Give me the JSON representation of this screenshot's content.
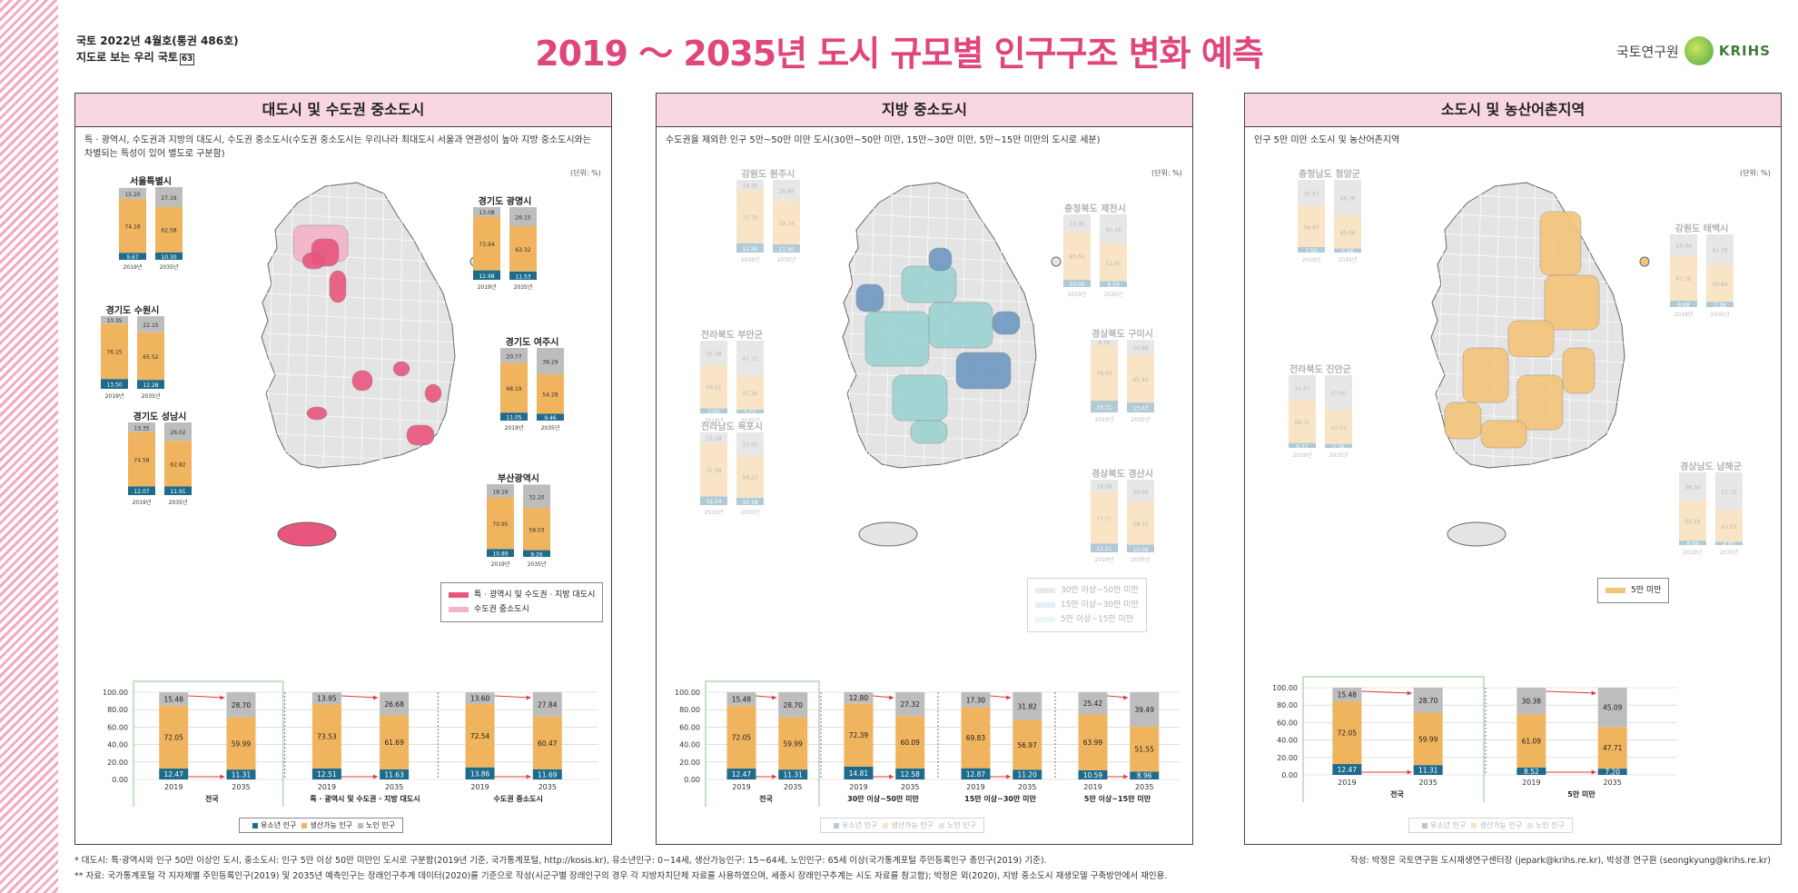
{
  "header": {
    "line1": "국토 2022년 4월호(통권 486호)",
    "line2": "지도로 보는 우리 국토",
    "line2_box": "63",
    "title": "2019 ～ 2035년 도시 규모별 인구구조 변화 예측",
    "logo_text": "국토연구원",
    "logo_en": "KRIHS"
  },
  "colors": {
    "youth": "#1f6b8c",
    "working": "#f0b45e",
    "elderly": "#bdbdbd",
    "metro": "#e8567e",
    "metroLight": "#f4b3c6",
    "local": "#9cd3d3",
    "localDark": "#6f98c2",
    "small": "#f4c47a",
    "accent": "#e0457b"
  },
  "panels": [
    {
      "title": "대도시 및 수도권 중소도시",
      "desc": "특 · 광역시, 수도권과 지방의 대도시, 수도권 중소도시(수도권 중소도시는 우리나라 최대도시 서울과 연관성이 높아 지방 중소도시와는 차별되는 특성이 있어 별도로 구분함)",
      "unit": "(단위: %)",
      "legend": [
        "특 · 광역시 및 수도권 · 지방 대도시",
        "수도권 중소도시"
      ],
      "callouts": [
        {
          "name": "서울특별시",
          "y19": [
            9.67,
            74.18,
            15.2
          ],
          "y35": [
            10.3,
            62.58,
            27.19
          ]
        },
        {
          "name": "경기도 광명시",
          "y19": [
            12.98,
            73.94,
            13.08
          ],
          "y35": [
            11.53,
            62.32,
            26.15
          ]
        },
        {
          "name": "경기도 수원시",
          "y19": [
            13.5,
            76.15,
            10.35
          ],
          "y35": [
            12.28,
            65.52,
            22.15
          ]
        },
        {
          "name": "경기도 여주시",
          "y19": [
            11.05,
            68.19,
            20.77
          ],
          "y35": [
            9.46,
            54.28,
            36.29
          ]
        },
        {
          "name": "경기도 성남시",
          "y19": [
            12.07,
            74.58,
            13.35
          ],
          "y35": [
            11.91,
            62.82,
            26.02
          ]
        },
        {
          "name": "부산광역시",
          "y19": [
            10.89,
            70.95,
            18.16
          ],
          "y35": [
            9.26,
            58.03,
            32.2
          ]
        }
      ],
      "groups": [
        {
          "label": "전국",
          "y19": [
            12.47,
            72.05,
            15.48
          ],
          "y35": [
            11.31,
            59.99,
            28.7
          ],
          "boxed": true
        },
        {
          "label": "특 · 광역시 및 수도권 · 지방 대도시",
          "y19": [
            12.51,
            73.53,
            13.95
          ],
          "y35": [
            11.63,
            61.69,
            26.68
          ]
        },
        {
          "label": "수도권 중소도시",
          "y19": [
            13.86,
            72.54,
            13.6
          ],
          "y35": [
            11.69,
            60.47,
            27.84
          ]
        }
      ]
    },
    {
      "title": "지방 중소도시",
      "desc": "수도권을 제외한 인구 5만~50만 미만 도시(30만~50만 미만, 15만~30만 미만, 5만~15만 미만의 도시로 세분)",
      "unit": "(단위: %)",
      "legend": [
        "30만 이상~50만 미만",
        "15만 이상~30만 미만",
        "5만 이상~15만 미만"
      ],
      "callouts": [
        {
          "name": "강원도 원주시",
          "y19": [
            12.9,
            72.75,
            14.35
          ],
          "y35": [
            11.4,
            59.74,
            28.86
          ]
        },
        {
          "name": "충청북도 제천시",
          "y19": [
            10.0,
            65.64,
            24.36
          ],
          "y35": [
            8.19,
            51.65,
            40.16
          ]
        },
        {
          "name": "전라북도 부안군",
          "y19": [
            7.0,
            59.62,
            33.38
          ],
          "y35": [
            5.02,
            47.26,
            47.72
          ]
        },
        {
          "name": "경상북도 구미시",
          "y19": [
            16.31,
            76.93,
            6.76
          ],
          "y35": [
            13.63,
            65.49,
            20.88
          ]
        },
        {
          "name": "전라남도 목포시",
          "y19": [
            12.14,
            72.68,
            15.18
          ],
          "y35": [
            10.18,
            58.22,
            31.6
          ]
        },
        {
          "name": "경상북도 경산시",
          "y19": [
            12.21,
            71.71,
            16.08
          ],
          "y35": [
            10.56,
            58.75,
            30.69
          ]
        }
      ],
      "groups": [
        {
          "label": "전국",
          "y19": [
            12.47,
            72.05,
            15.48
          ],
          "y35": [
            11.31,
            59.99,
            28.7
          ],
          "boxed": true
        },
        {
          "label": "30만 이상~50만 미만",
          "y19": [
            14.81,
            72.39,
            12.8
          ],
          "y35": [
            12.58,
            60.09,
            27.32
          ]
        },
        {
          "label": "15만 이상~30만 미만",
          "y19": [
            12.87,
            69.83,
            17.3
          ],
          "y35": [
            11.2,
            56.97,
            31.82
          ]
        },
        {
          "label": "5만 이상~15만 미만",
          "y19": [
            10.59,
            63.99,
            25.42
          ],
          "y35": [
            8.96,
            51.55,
            39.49
          ]
        }
      ]
    },
    {
      "title": "소도시 및 농산어촌지역",
      "desc": "인구 5만 미만 소도시 및 농산어촌지역",
      "unit": "(단위: %)",
      "legend": [
        "5만 미만"
      ],
      "callouts": [
        {
          "name": "충청남도 청양군",
          "y19": [
            7.5,
            56.63,
            35.87
          ],
          "y35": [
            5.56,
            45.66,
            48.78
          ]
        },
        {
          "name": "강원도 태백시",
          "y19": [
            8.88,
            61.78,
            29.34
          ],
          "y35": [
            7.38,
            50.84,
            41.78
          ]
        },
        {
          "name": "전라북도 진안군",
          "y19": [
            6.72,
            58.71,
            34.57
          ],
          "y35": [
            5.38,
            47.02,
            47.6
          ]
        },
        {
          "name": "경상남도 남해군",
          "y19": [
            6.08,
            55.58,
            38.34
          ],
          "y35": [
            4.65,
            43.63,
            51.72
          ]
        }
      ],
      "groups": [
        {
          "label": "전국",
          "y19": [
            12.47,
            72.05,
            15.48
          ],
          "y35": [
            11.31,
            59.99,
            28.7
          ],
          "boxed": true
        },
        {
          "label": "5만 미만",
          "y19": [
            8.52,
            61.09,
            30.38
          ],
          "y35": [
            7.2,
            47.71,
            45.09
          ]
        }
      ]
    }
  ],
  "bar_legend": [
    "유소년 인구",
    "생산가능 인구",
    "노인 인구"
  ],
  "year_labels": [
    "2019",
    "2035"
  ],
  "mini_year_labels": [
    "2019년",
    "2035년"
  ],
  "y_ticks": [
    "100.00",
    "80.00",
    "60.00",
    "40.00",
    "20.00",
    "0.00"
  ],
  "footnote1": "* 대도시: 특·광역시와 인구 50만 이상인 도시, 중소도시: 인구 5만 이상 50만 미만인 도시로 구분함(2019년 기준, 국가통계포털, http://kosis.kr), 유소년인구: 0~14세, 생산가능인구: 15~64세, 노인인구: 65세 이상(국가통계포털 주민등록인구 총인구(2019) 기준).",
  "footnote2": "** 자료: 국가통계포털 각 지자체별 주민등록인구(2019) 및 2035년 예측인구는 장래인구추계 데이터(2020)를 기준으로 작성(시군구별 장래인구의 경우 각 지방자치단체 자료를 사용하였으며, 세종시 장래인구추계는 시도 자료를 참고함); 박정은 외(2020), 지방 중소도시 재생모델 구축방안에서 재인용.",
  "credit": "작성: 박정은 국토연구원 도시재생연구센터장 (jepark@krihs.re.kr), 박성경 연구원 (seongkyung@krihs.re.kr)"
}
